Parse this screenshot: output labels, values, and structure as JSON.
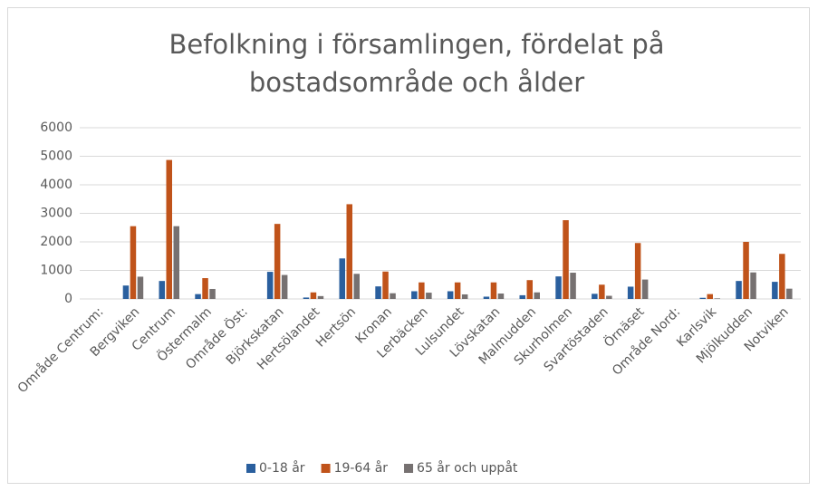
{
  "chart_data": {
    "type": "bar",
    "title": "Befolkning i församlingen, fördelat på bostadsområde och ålder",
    "categories": [
      "Område Centrum:",
      "Bergviken",
      "Centrum",
      "Östermalm",
      "Område Öst:",
      "Björkskatan",
      "Hertsölandet",
      "Hertsön",
      "Kronan",
      "Lerbäcken",
      "Lulsundet",
      "Lövskatan",
      "Malmudden",
      "Skurholmen",
      "Svartöstaden",
      "Örnäset",
      "Område Nord:",
      "Karlsvik",
      "Mjölkudden",
      "Notviken"
    ],
    "series": [
      {
        "name": "0-18 år",
        "color": "#2a5f9e",
        "values": [
          null,
          470,
          630,
          170,
          null,
          950,
          50,
          1420,
          440,
          270,
          270,
          80,
          130,
          790,
          180,
          430,
          null,
          40,
          630,
          600
        ]
      },
      {
        "name": "19-64 år",
        "color": "#c0531a",
        "values": [
          null,
          2550,
          4870,
          730,
          null,
          2630,
          230,
          3320,
          960,
          580,
          580,
          580,
          660,
          2760,
          500,
          1960,
          null,
          170,
          2000,
          1580
        ]
      },
      {
        "name": "65 år och uppåt",
        "color": "#767171",
        "values": [
          null,
          780,
          2550,
          350,
          null,
          840,
          100,
          880,
          200,
          220,
          160,
          190,
          230,
          920,
          110,
          680,
          null,
          20,
          930,
          360
        ]
      }
    ],
    "ylim": [
      0,
      6000
    ],
    "yticks": [
      0,
      1000,
      2000,
      3000,
      4000,
      5000,
      6000
    ],
    "grid": true,
    "legend": "bottom"
  }
}
